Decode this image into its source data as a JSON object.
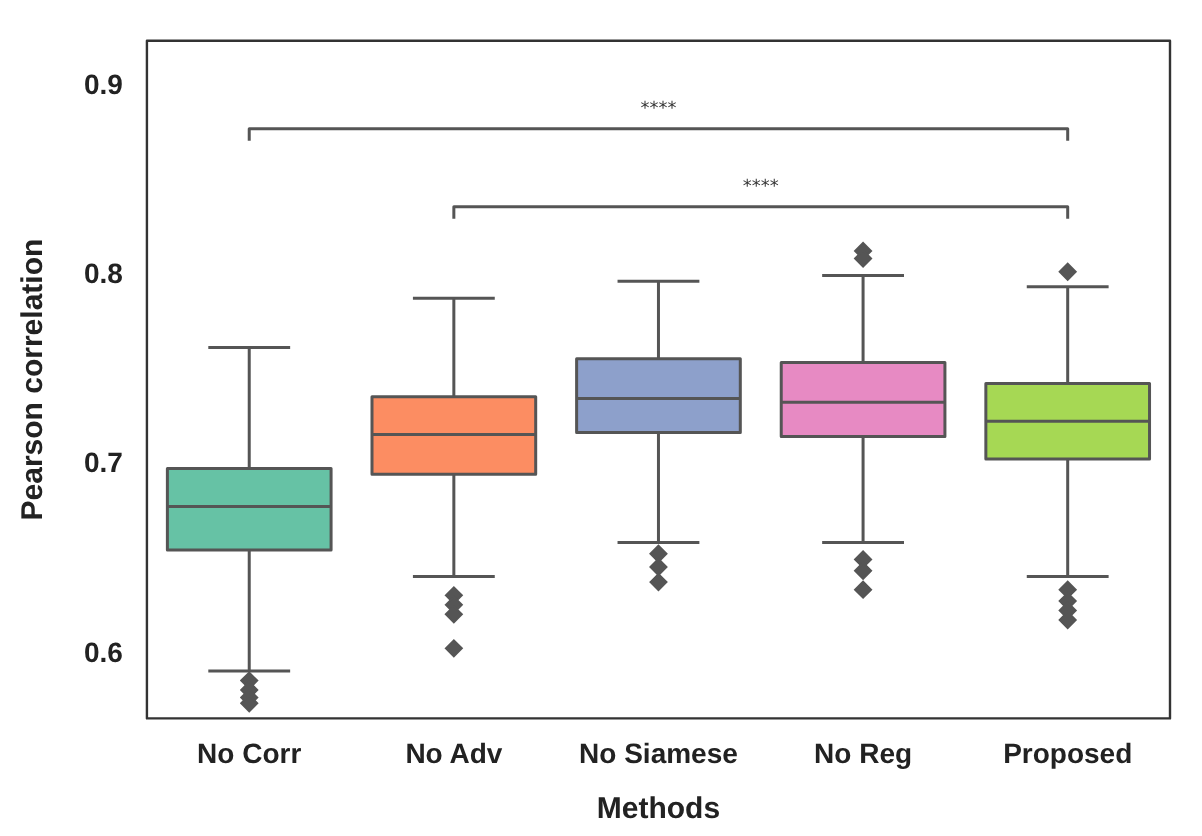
{
  "chart_data": {
    "type": "box",
    "xlabel": "Methods",
    "ylabel": "Pearson correlation",
    "categories": [
      "No Corr",
      "No Adv",
      "No Siamese",
      "No Reg",
      "Proposed"
    ],
    "colors": [
      "#66c2a5",
      "#fc8d62",
      "#8da0cb",
      "#e78ac3",
      "#a6d854"
    ],
    "boxes": [
      {
        "low": 0.591,
        "q1": 0.655,
        "median": 0.678,
        "q3": 0.698,
        "high": 0.762,
        "outliers": [
          0.586,
          0.581,
          0.577,
          0.574
        ]
      },
      {
        "low": 0.641,
        "q1": 0.695,
        "median": 0.716,
        "q3": 0.736,
        "high": 0.788,
        "outliers": [
          0.631,
          0.626,
          0.621,
          0.603
        ]
      },
      {
        "low": 0.659,
        "q1": 0.717,
        "median": 0.735,
        "q3": 0.756,
        "high": 0.797,
        "outliers": [
          0.653,
          0.646,
          0.638
        ]
      },
      {
        "low": 0.659,
        "q1": 0.715,
        "median": 0.733,
        "q3": 0.754,
        "high": 0.8,
        "outliers": [
          0.813,
          0.809,
          0.65,
          0.644,
          0.634
        ]
      },
      {
        "low": 0.641,
        "q1": 0.703,
        "median": 0.723,
        "q3": 0.743,
        "high": 0.794,
        "outliers": [
          0.802,
          0.634,
          0.628,
          0.623,
          0.618
        ]
      }
    ],
    "ylim": [
      0.566,
      0.924
    ],
    "yticks": [
      0.6,
      0.7,
      0.8,
      0.9
    ],
    "grid": false,
    "legend": false,
    "marker": "diamond",
    "annotations": [
      "****",
      "****"
    ]
  }
}
